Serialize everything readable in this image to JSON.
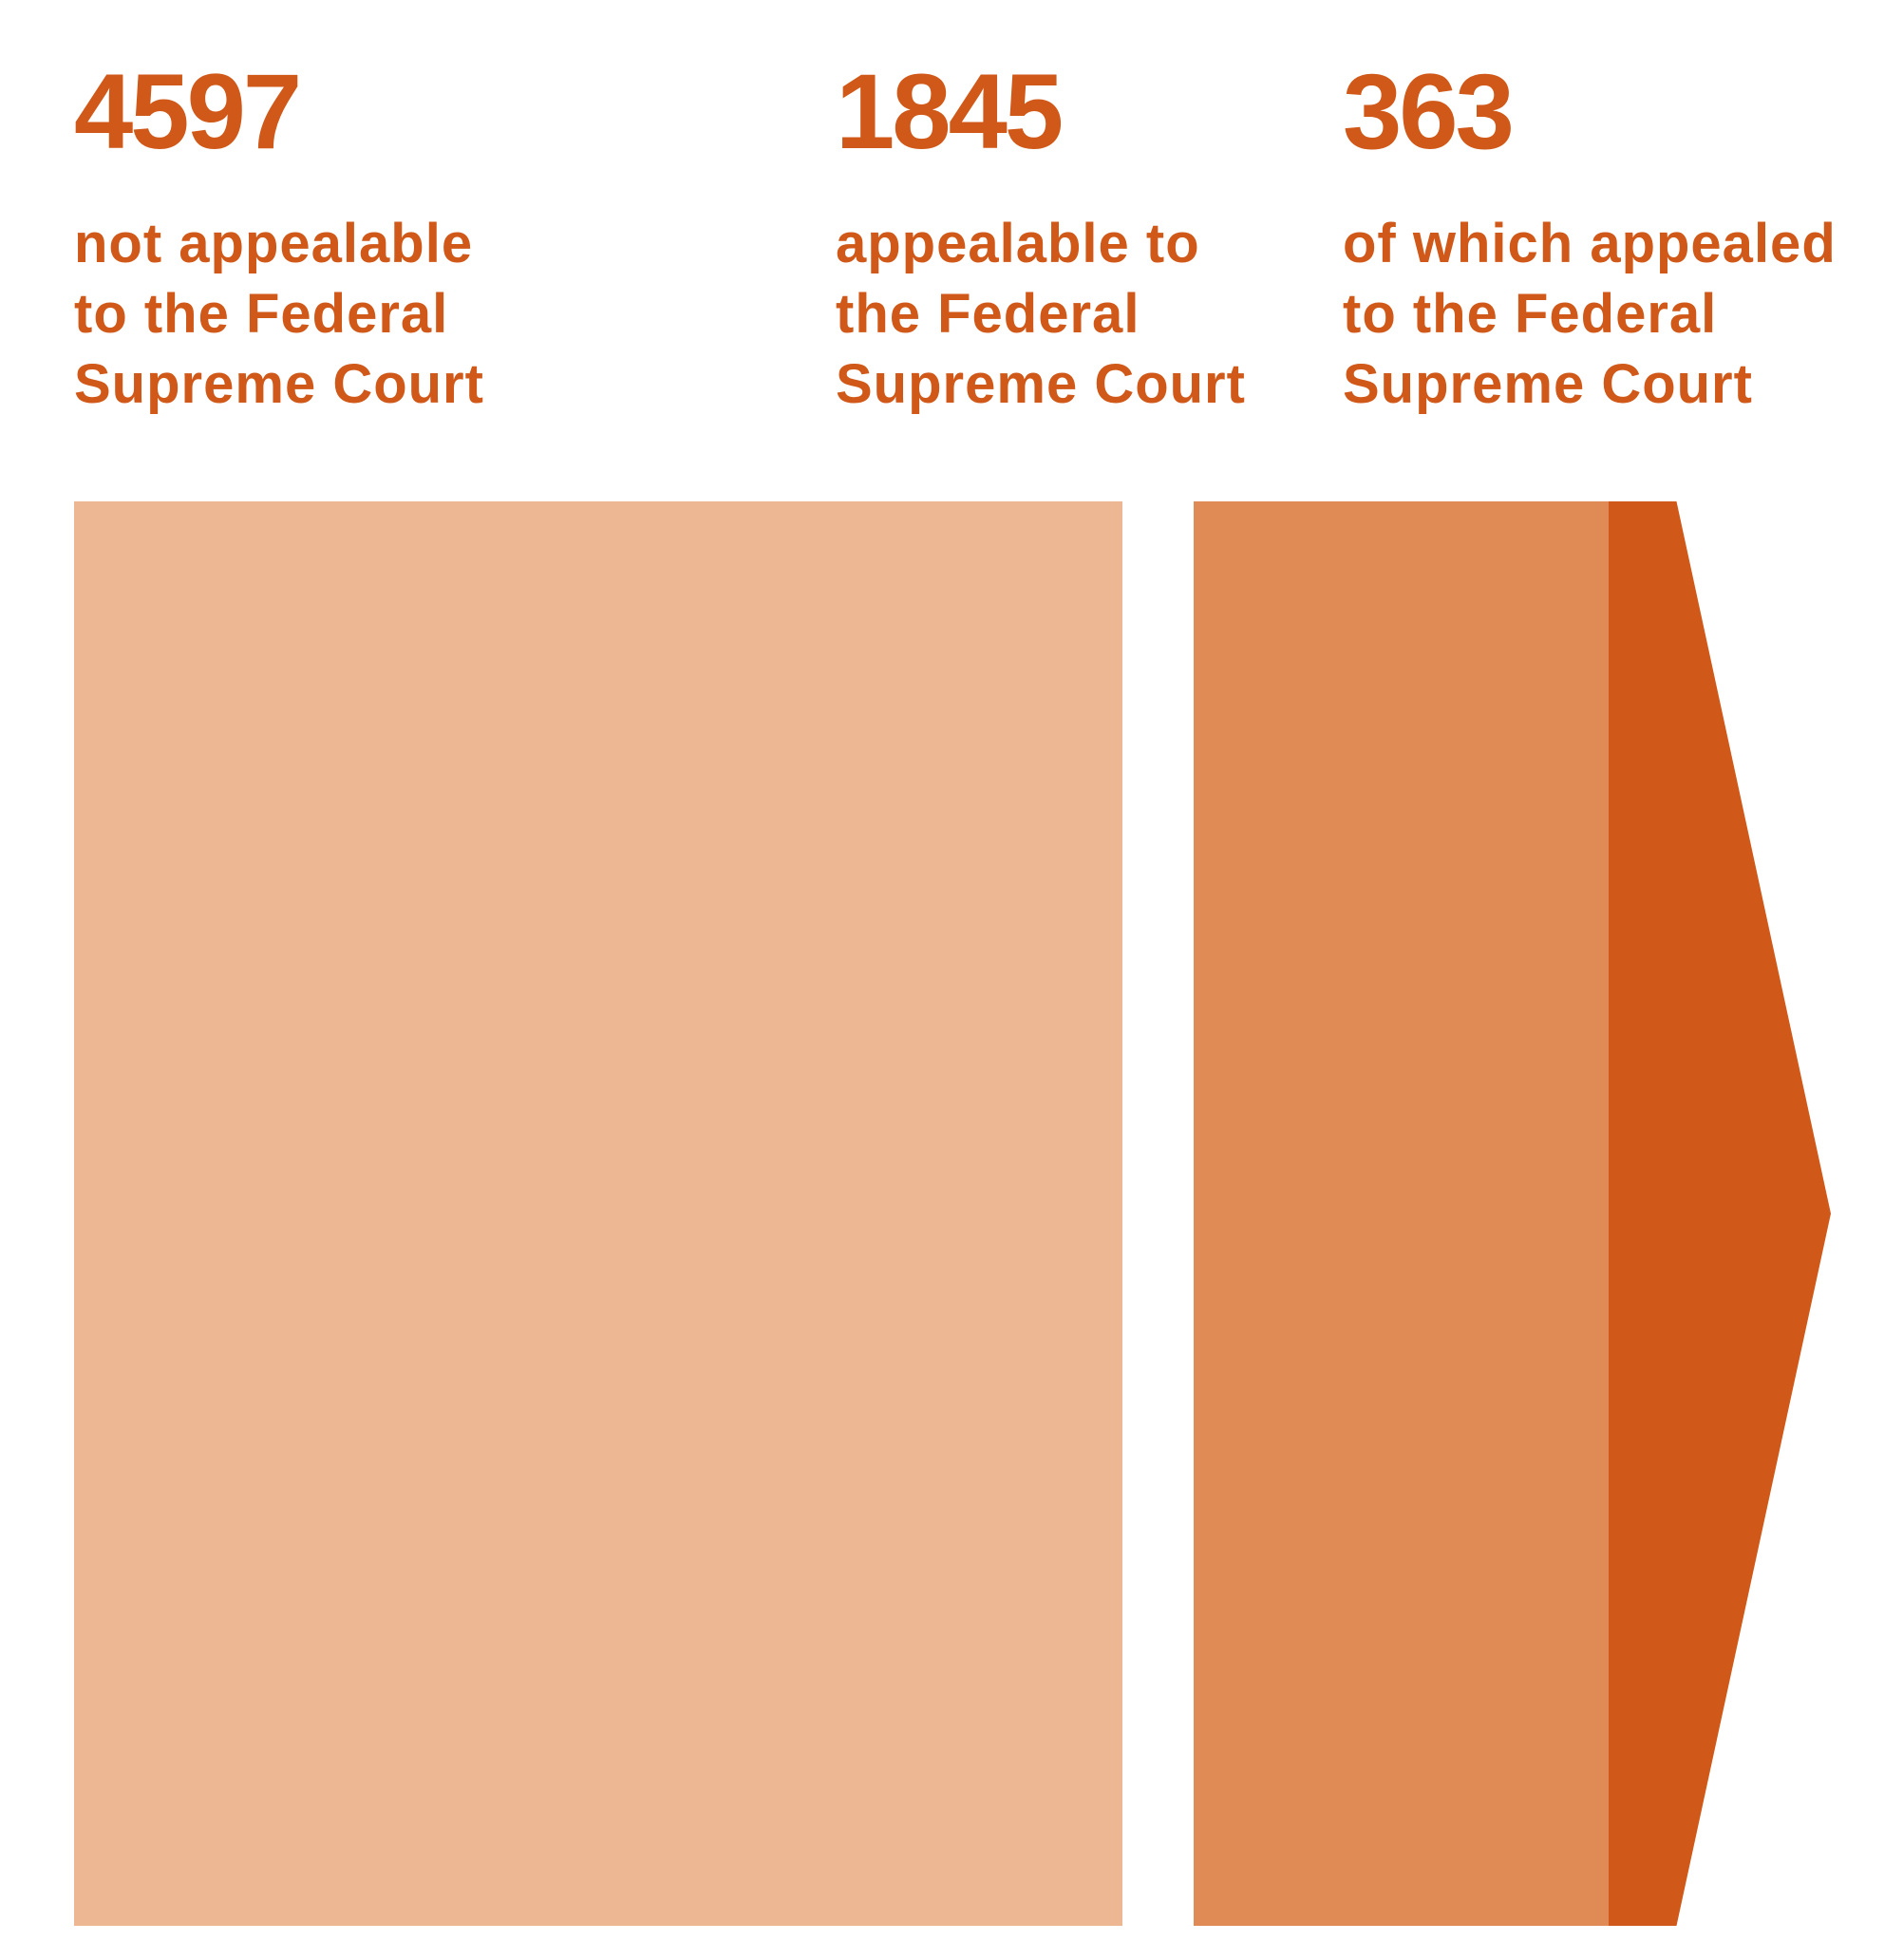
{
  "chart_data": {
    "type": "flow",
    "items": [
      {
        "value": 4597,
        "value_label": "4597",
        "label_lines": [
          "not appealable",
          "to the Federal",
          "Supreme Court"
        ],
        "color": "#ECB792"
      },
      {
        "value": 1845,
        "value_label": "1845",
        "label_lines": [
          "appealable to",
          "the Federal",
          "Supreme Court"
        ],
        "color": "#E08A55"
      },
      {
        "value": 363,
        "value_label": "363",
        "label_lines": [
          "of which appealed",
          "to the Federal",
          "Supreme Court"
        ],
        "color": "#D05818"
      }
    ],
    "text_color": "#D05818"
  }
}
